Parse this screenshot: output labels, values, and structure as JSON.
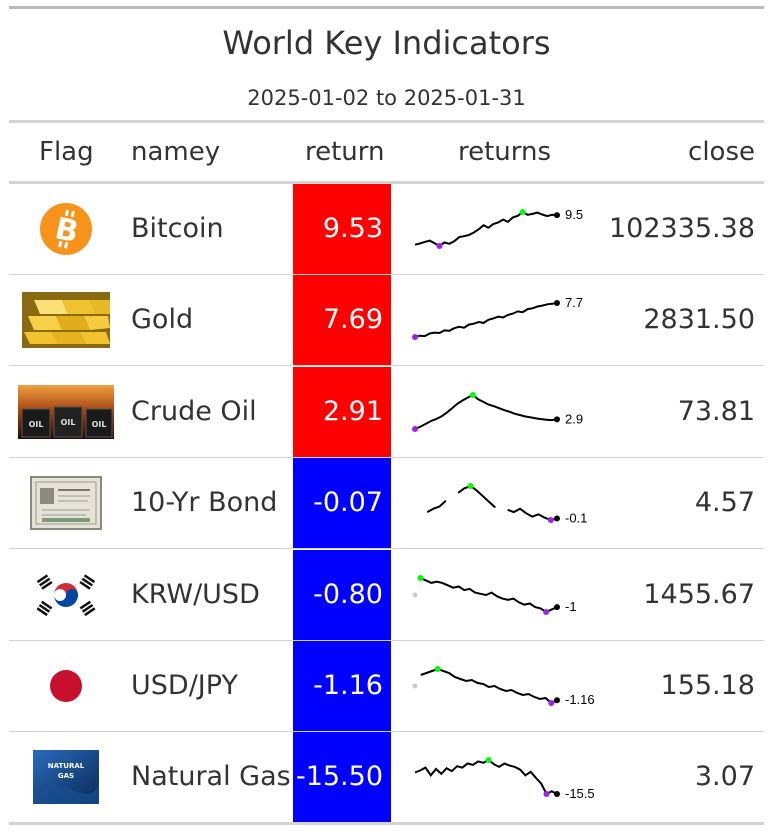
{
  "title": "World Key Indicators",
  "subtitle": "2025-01-02 to 2025-01-31",
  "columns": {
    "flag": "Flag",
    "name": "namey",
    "return": "return",
    "returns": "returns",
    "close": "close"
  },
  "colors": {
    "positive": "#ff0000",
    "negative": "#0000ff",
    "line": "#000000",
    "min_marker": "#a020f0",
    "max_marker": "#00ff00",
    "last_marker": "#000000",
    "gap_marker": "#cccccc"
  },
  "rows": [
    {
      "flag_icon": "bitcoin-icon",
      "name": "Bitcoin",
      "return": "9.53",
      "return_value": 9.53,
      "close": "102335.38",
      "spark_label": "9.5",
      "spark": [
        0.1,
        0.5,
        1.0,
        1.4,
        0.6,
        -0.3,
        0.8,
        0.4,
        1.2,
        2.5,
        2.8,
        3.2,
        4.0,
        5.0,
        6.3,
        5.5,
        6.7,
        7.2,
        8.1,
        7.4,
        8.8,
        9.3,
        10.5,
        9.6,
        9.9,
        10.3,
        9.7,
        9.2,
        9.6,
        9.53
      ]
    },
    {
      "flag_icon": "gold-bars-icon",
      "name": "Gold",
      "return": "7.69",
      "return_value": 7.69,
      "close": "2831.50",
      "spark_label": "7.7",
      "spark": [
        0,
        0.3,
        0.2,
        0.8,
        1.0,
        0.9,
        1.5,
        1.4,
        2.0,
        2.3,
        2.1,
        2.8,
        3.0,
        3.4,
        3.2,
        3.9,
        4.2,
        4.6,
        4.4,
        5.0,
        5.3,
        5.8,
        5.6,
        6.3,
        6.5,
        6.9,
        7.1,
        7.4,
        7.5,
        7.69
      ]
    },
    {
      "flag_icon": "crude-oil-icon",
      "name": "Crude Oil",
      "return": "2.91",
      "return_value": 2.91,
      "close": "73.81",
      "spark_label": "2.9",
      "spark": [
        0,
        0.7,
        1.5,
        2.4,
        3.0,
        3.8,
        4.9,
        6.2,
        7.6,
        8.6,
        9.5,
        10.3,
        9.0,
        8.2,
        7.4,
        6.9,
        6.3,
        5.7,
        5.2,
        4.6,
        4.2,
        3.8,
        3.5,
        3.2,
        3.0,
        2.8,
        2.7,
        2.91
      ]
    },
    {
      "flag_icon": "bond-certificate-icon",
      "name": "10-Yr Bond",
      "return": "-0.07",
      "return_value": -0.07,
      "close": "4.57",
      "spark_label": "-0.1",
      "spark": [
        0,
        null,
        0.5,
        0.8,
        1.0,
        1.5,
        null,
        2.2,
        2.6,
        2.8,
        2.4,
        1.9,
        1.4,
        0.9,
        null,
        0.7,
        0.5,
        0.8,
        0.4,
        0.1,
        0.3,
        0.0,
        -0.2,
        -0.07
      ]
    },
    {
      "flag_icon": "korea-flag-icon",
      "name": "KRW/USD",
      "return": "-0.80",
      "return_value": -0.8,
      "close": "1455.67",
      "spark_label": "-1",
      "spark": [
        null,
        0.4,
        0.3,
        0.2,
        0.25,
        0.2,
        0.1,
        0.0,
        0.05,
        -0.1,
        -0.05,
        -0.2,
        -0.25,
        -0.3,
        -0.2,
        -0.35,
        -0.45,
        -0.5,
        -0.45,
        -0.6,
        -0.7,
        -0.65,
        -0.8,
        -0.85,
        -1.0,
        -0.9,
        -0.8
      ]
    },
    {
      "flag_icon": "japan-flag-icon",
      "name": "USD/JPY",
      "return": "-1.16",
      "return_value": -1.16,
      "close": "155.18",
      "spark_label": "-1.16",
      "spark": [
        null,
        0.1,
        0.2,
        0.3,
        0.4,
        0.3,
        0.2,
        0.0,
        -0.1,
        -0.2,
        -0.15,
        -0.3,
        -0.35,
        -0.5,
        -0.45,
        -0.6,
        -0.7,
        -0.65,
        -0.8,
        -0.9,
        -0.85,
        -1.0,
        -1.1,
        -1.05,
        -1.3,
        -1.16
      ]
    },
    {
      "flag_icon": "natural-gas-icon",
      "name": "Natural Gas",
      "return": "-15.50",
      "return_value": -15.5,
      "close": "3.07",
      "spark_label": "-15.5",
      "spark": [
        0,
        1.5,
        3.5,
        -2.0,
        2.5,
        -1.0,
        3.0,
        1.0,
        4.5,
        3.5,
        6.5,
        5.5,
        8.0,
        7.0,
        9.0,
        6.0,
        4.0,
        6.5,
        5.0,
        4.0,
        2.0,
        -2.0,
        0.5,
        -4.0,
        -8.0,
        -15.5,
        -13.5,
        -15.5
      ]
    }
  ]
}
